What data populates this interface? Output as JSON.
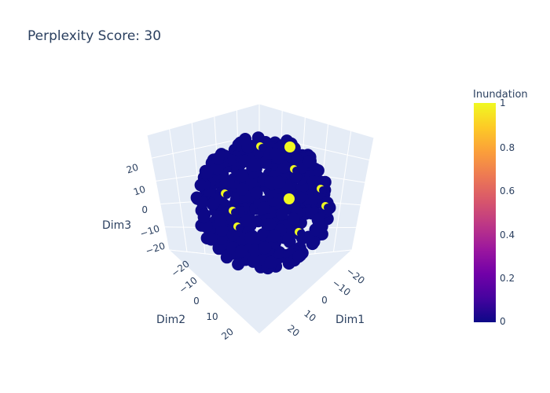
{
  "chart_data": {
    "type": "scatter",
    "title": "Perplexity Score: 30",
    "axes": {
      "x": {
        "label": "Dim1",
        "ticks": [
          "−20",
          "−10",
          "0",
          "10",
          "20"
        ]
      },
      "y": {
        "label": "Dim2",
        "ticks": [
          "−20",
          "−10",
          "0",
          "10",
          "20"
        ]
      },
      "z": {
        "label": "Dim3",
        "ticks": [
          "20",
          "10",
          "0",
          "−10",
          "−20"
        ]
      }
    },
    "xlim": [
      -25,
      25
    ],
    "ylim": [
      -25,
      25
    ],
    "zlim": [
      -25,
      25
    ],
    "colorbar": {
      "title": "Inundation",
      "ticks": [
        "1",
        "0.8",
        "0.6",
        "0.4",
        "0.2",
        "0"
      ],
      "range": [
        0,
        1
      ],
      "colorscale": [
        "#0d0887",
        "#46039f",
        "#7201a8",
        "#9c179e",
        "#bd3786",
        "#d8576b",
        "#ed7953",
        "#fb9f3a",
        "#fdca26",
        "#f0f921"
      ]
    },
    "series": [
      {
        "values_color": [
          0,
          1
        ],
        "points_inundation_0": "majority",
        "points_inundation_1": "minority"
      }
    ],
    "colors": {
      "low": "#0d0887",
      "high": "#f0f921",
      "scene_bg": "#e5ecf6",
      "text": "#2a3f5f"
    }
  }
}
